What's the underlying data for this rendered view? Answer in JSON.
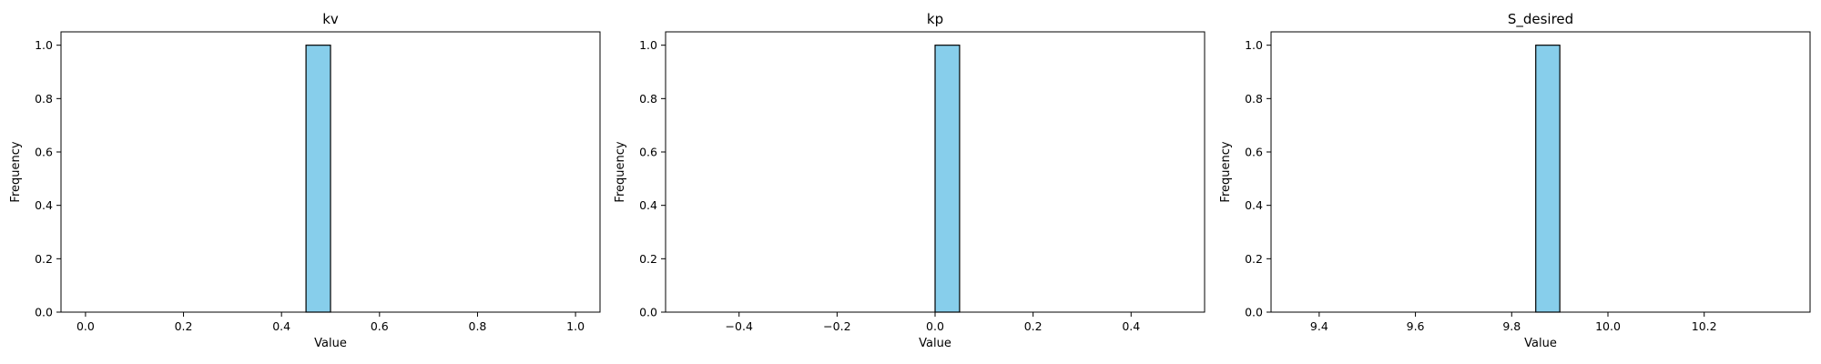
{
  "figure": {
    "background": "#ffffff",
    "bar_color": "#87ceeb",
    "bar_edge_color": "#000000"
  },
  "chart_data": [
    {
      "type": "bar",
      "chart_kind": "histogram",
      "title": "kv",
      "xlabel": "Value",
      "ylabel": "Frequency",
      "xlim": [
        -0.05,
        1.05
      ],
      "ylim": [
        0.0,
        1.05
      ],
      "xticks": [
        0.0,
        0.2,
        0.4,
        0.6,
        0.8,
        1.0
      ],
      "xtick_labels": [
        "0.0",
        "0.2",
        "0.4",
        "0.6",
        "0.8",
        "1.0"
      ],
      "yticks": [
        0.0,
        0.2,
        0.4,
        0.6,
        0.8,
        1.0
      ],
      "ytick_labels": [
        "0.0",
        "0.2",
        "0.4",
        "0.6",
        "0.8",
        "1.0"
      ],
      "bins": [
        {
          "x0": 0.45,
          "x1": 0.5,
          "count": 1
        }
      ],
      "baseline": [
        0.0,
        1.0
      ],
      "grid": false
    },
    {
      "type": "bar",
      "chart_kind": "histogram",
      "title": "kp",
      "xlabel": "Value",
      "ylabel": "Frequency",
      "xlim": [
        -0.55,
        0.55
      ],
      "ylim": [
        0.0,
        1.05
      ],
      "xticks": [
        -0.4,
        -0.2,
        0.0,
        0.2,
        0.4
      ],
      "xtick_labels": [
        "−0.4",
        "−0.2",
        "0.0",
        "0.2",
        "0.4"
      ],
      "yticks": [
        0.0,
        0.2,
        0.4,
        0.6,
        0.8,
        1.0
      ],
      "ytick_labels": [
        "0.0",
        "0.2",
        "0.4",
        "0.6",
        "0.8",
        "1.0"
      ],
      "bins": [
        {
          "x0": 0.0,
          "x1": 0.05,
          "count": 1
        }
      ],
      "baseline": [
        -0.5,
        0.5
      ],
      "grid": false
    },
    {
      "type": "bar",
      "chart_kind": "histogram",
      "title": "S_desired",
      "xlabel": "Value",
      "ylabel": "Frequency",
      "xlim": [
        9.3,
        10.42
      ],
      "ylim": [
        0.0,
        1.05
      ],
      "xticks": [
        9.4,
        9.6,
        9.8,
        10.0,
        10.2
      ],
      "xtick_labels": [
        "9.4",
        "9.6",
        "9.8",
        "10.0",
        "10.2"
      ],
      "yticks": [
        0.0,
        0.2,
        0.4,
        0.6,
        0.8,
        1.0
      ],
      "ytick_labels": [
        "0.0",
        "0.2",
        "0.4",
        "0.6",
        "0.8",
        "1.0"
      ],
      "bins": [
        {
          "x0": 9.85,
          "x1": 9.9,
          "count": 1
        }
      ],
      "baseline": [
        9.35,
        10.35
      ],
      "grid": false
    }
  ]
}
